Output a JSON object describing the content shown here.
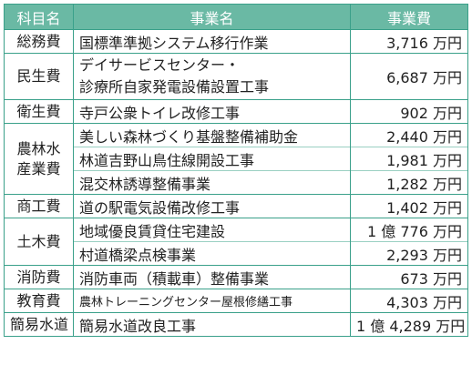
{
  "headers": {
    "subject": "科目名",
    "project": "事業名",
    "cost": "事業費"
  },
  "rows": [
    {
      "subject": "総務費",
      "project": "国標準準拠システム移行作業",
      "cost": "3,716 万円"
    },
    {
      "subject": "民生費",
      "project_line1": "デイサービスセンター・",
      "project_line2": "診療所自家発電設備設置工事",
      "cost": "6,687 万円"
    },
    {
      "subject": "衛生費",
      "project": "寺戸公衆トイレ改修工事",
      "cost": "902 万円"
    },
    {
      "subject_line1": "農林水",
      "subject_line2": "産業費",
      "project": "美しい森林づくり基盤整備補助金",
      "cost": "2,440 万円"
    },
    {
      "project": "林道吉野山鳥住線開設工事",
      "cost": "1,981 万円"
    },
    {
      "project": "混交林誘導整備事業",
      "cost": "1,282 万円"
    },
    {
      "subject": "商工費",
      "project": "道の駅電気設備改修工事",
      "cost": "1,402 万円"
    },
    {
      "subject": "土木費",
      "project": "地域優良賃貸住宅建設",
      "cost": "1 億 776 万円"
    },
    {
      "project": "村道橋梁点検事業",
      "cost": "2,293 万円"
    },
    {
      "subject": "消防費",
      "project": "消防車両（積載車）整備事業",
      "cost": "673 万円"
    },
    {
      "subject": "教育費",
      "project": "農林トレーニングセンター屋根修繕工事",
      "cost": "4,303 万円"
    },
    {
      "subject": "簡易水道",
      "project": "簡易水道改良工事",
      "cost": "1 億 4,289 万円"
    }
  ]
}
